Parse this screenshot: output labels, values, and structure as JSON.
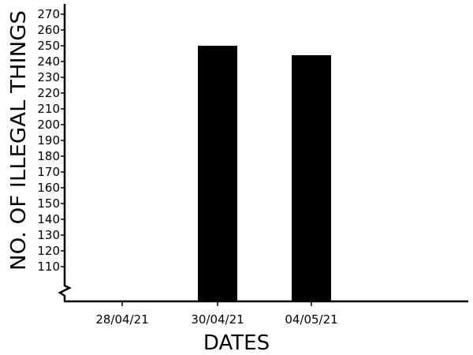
{
  "chart_data": {
    "type": "bar",
    "title": "",
    "xlabel": "DATES",
    "ylabel": "NO. OF ILLEGAL THINGS",
    "categories": [
      "28/04/21",
      "30/04/21",
      "04/05/21"
    ],
    "values": [
      null,
      250,
      244
    ],
    "ylim": [
      100,
      270
    ],
    "yticks": [
      110,
      120,
      130,
      140,
      150,
      160,
      170,
      180,
      190,
      200,
      210,
      220,
      230,
      240,
      250,
      260,
      270
    ],
    "axis_break": "y",
    "grid": false,
    "legend": "none",
    "bar_color": "#000000",
    "axis_color": "#000000"
  }
}
